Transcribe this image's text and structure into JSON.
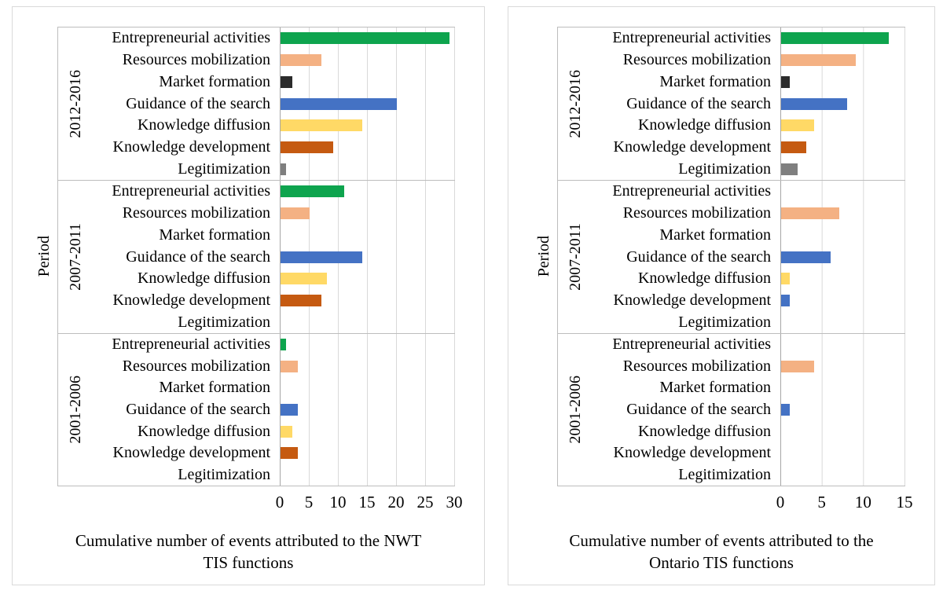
{
  "chart_data": [
    {
      "type": "bar",
      "orientation": "horizontal",
      "title": "",
      "xlabel": "Cumulative number of events attributed to the NWT TIS functions",
      "xlabel_lines": [
        "Cumulative number of events attributed to  the NWT",
        "TIS functions"
      ],
      "ylabel": "Period",
      "xlim": [
        0,
        30
      ],
      "x_ticks": [
        0,
        5,
        10,
        15,
        20,
        25,
        30
      ],
      "grid": true,
      "legend": false,
      "categories": [
        "Entrepreneurial activities",
        "Resources mobilization",
        "Market formation",
        "Guidance of the search",
        "Knowledge diffusion",
        "Knowledge development",
        "Legitimization"
      ],
      "category_colors": [
        "#0EA44E",
        "#F4B183",
        "#2B2B2B",
        "#4472C4",
        "#FFD966",
        "#C55A11",
        "#7F7F7F"
      ],
      "color_overrides": [],
      "groups": [
        {
          "period": "2012-2016",
          "values": [
            29,
            7,
            2,
            20,
            14,
            9,
            1
          ]
        },
        {
          "period": "2007-2011",
          "values": [
            11,
            5,
            0,
            14,
            8,
            7,
            0
          ]
        },
        {
          "period": "2001-2006",
          "values": [
            1,
            3,
            0,
            3,
            2,
            3,
            0
          ]
        }
      ]
    },
    {
      "type": "bar",
      "orientation": "horizontal",
      "title": "",
      "xlabel": "Cumulative number of events attributed to the Ontario TIS functions",
      "xlabel_lines": [
        "Cumulative number of events attributed to  the",
        "Ontario TIS functions"
      ],
      "ylabel": "Period",
      "xlim": [
        0,
        15
      ],
      "x_ticks": [
        0,
        5,
        10,
        15
      ],
      "grid": true,
      "legend": false,
      "categories": [
        "Entrepreneurial activities",
        "Resources mobilization",
        "Market formation",
        "Guidance of the search",
        "Knowledge diffusion",
        "Knowledge development",
        "Legitimization"
      ],
      "category_colors": [
        "#0EA44E",
        "#F4B183",
        "#2B2B2B",
        "#4472C4",
        "#FFD966",
        "#C55A11",
        "#7F7F7F"
      ],
      "color_overrides": [
        {
          "group": 1,
          "category": 5,
          "color": "#4472C4"
        }
      ],
      "groups": [
        {
          "period": "2012-2016",
          "values": [
            13,
            9,
            1,
            8,
            4,
            3,
            2
          ]
        },
        {
          "period": "2007-2011",
          "values": [
            0,
            7,
            0,
            6,
            1,
            1,
            0
          ]
        },
        {
          "period": "2001-2006",
          "values": [
            0,
            4,
            0,
            1,
            0,
            0,
            0
          ]
        }
      ]
    }
  ]
}
